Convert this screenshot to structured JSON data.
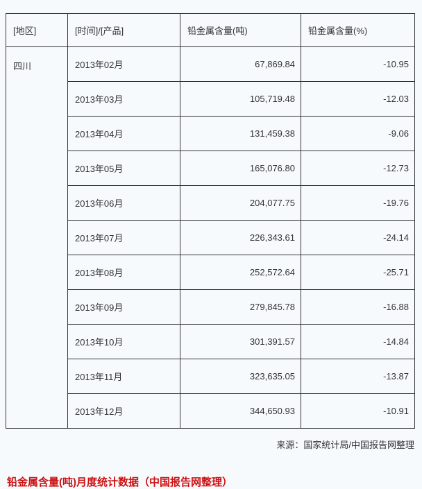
{
  "chart_data": {
    "type": "table",
    "columns": [
      "[地区]",
      "[时间]/[产品]",
      "铅金属含量(吨)",
      "铅金属含量(%)"
    ],
    "region": "四川",
    "rows": [
      {
        "month": "2013年02月",
        "tons": "67,869.84",
        "pct": "-10.95"
      },
      {
        "month": "2013年03月",
        "tons": "105,719.48",
        "pct": "-12.03"
      },
      {
        "month": "2013年04月",
        "tons": "131,459.38",
        "pct": "-9.06"
      },
      {
        "month": "2013年05月",
        "tons": "165,076.80",
        "pct": "-12.73"
      },
      {
        "month": "2013年06月",
        "tons": "204,077.75",
        "pct": "-19.76"
      },
      {
        "month": "2013年07月",
        "tons": "226,343.61",
        "pct": "-24.14"
      },
      {
        "month": "2013年08月",
        "tons": "252,572.64",
        "pct": "-25.71"
      },
      {
        "month": "2013年09月",
        "tons": "279,845.78",
        "pct": "-16.88"
      },
      {
        "month": "2013年10月",
        "tons": "301,391.57",
        "pct": "-14.84"
      },
      {
        "month": "2013年11月",
        "tons": "323,635.05",
        "pct": "-13.87"
      },
      {
        "month": "2013年12月",
        "tons": "344,650.93",
        "pct": "-10.91"
      }
    ],
    "values_tons": [
      67869.84,
      105719.48,
      131459.38,
      165076.8,
      204077.75,
      226343.61,
      252572.64,
      279845.78,
      301391.57,
      323635.05,
      344650.93
    ],
    "values_pct": [
      -10.95,
      -12.03,
      -9.06,
      -12.73,
      -19.76,
      -24.14,
      -25.71,
      -16.88,
      -14.84,
      -13.87,
      -10.91
    ]
  },
  "footer": {
    "source": "来源：国家统计局/中国报告网整理",
    "partial_red_text": "铅金属含量(吨)月度统计数据（中国报告网整理）"
  },
  "colors": {
    "page_background": "#f7fafd",
    "border": "#333333",
    "text": "#333333",
    "red_heading": "#cc1111"
  }
}
